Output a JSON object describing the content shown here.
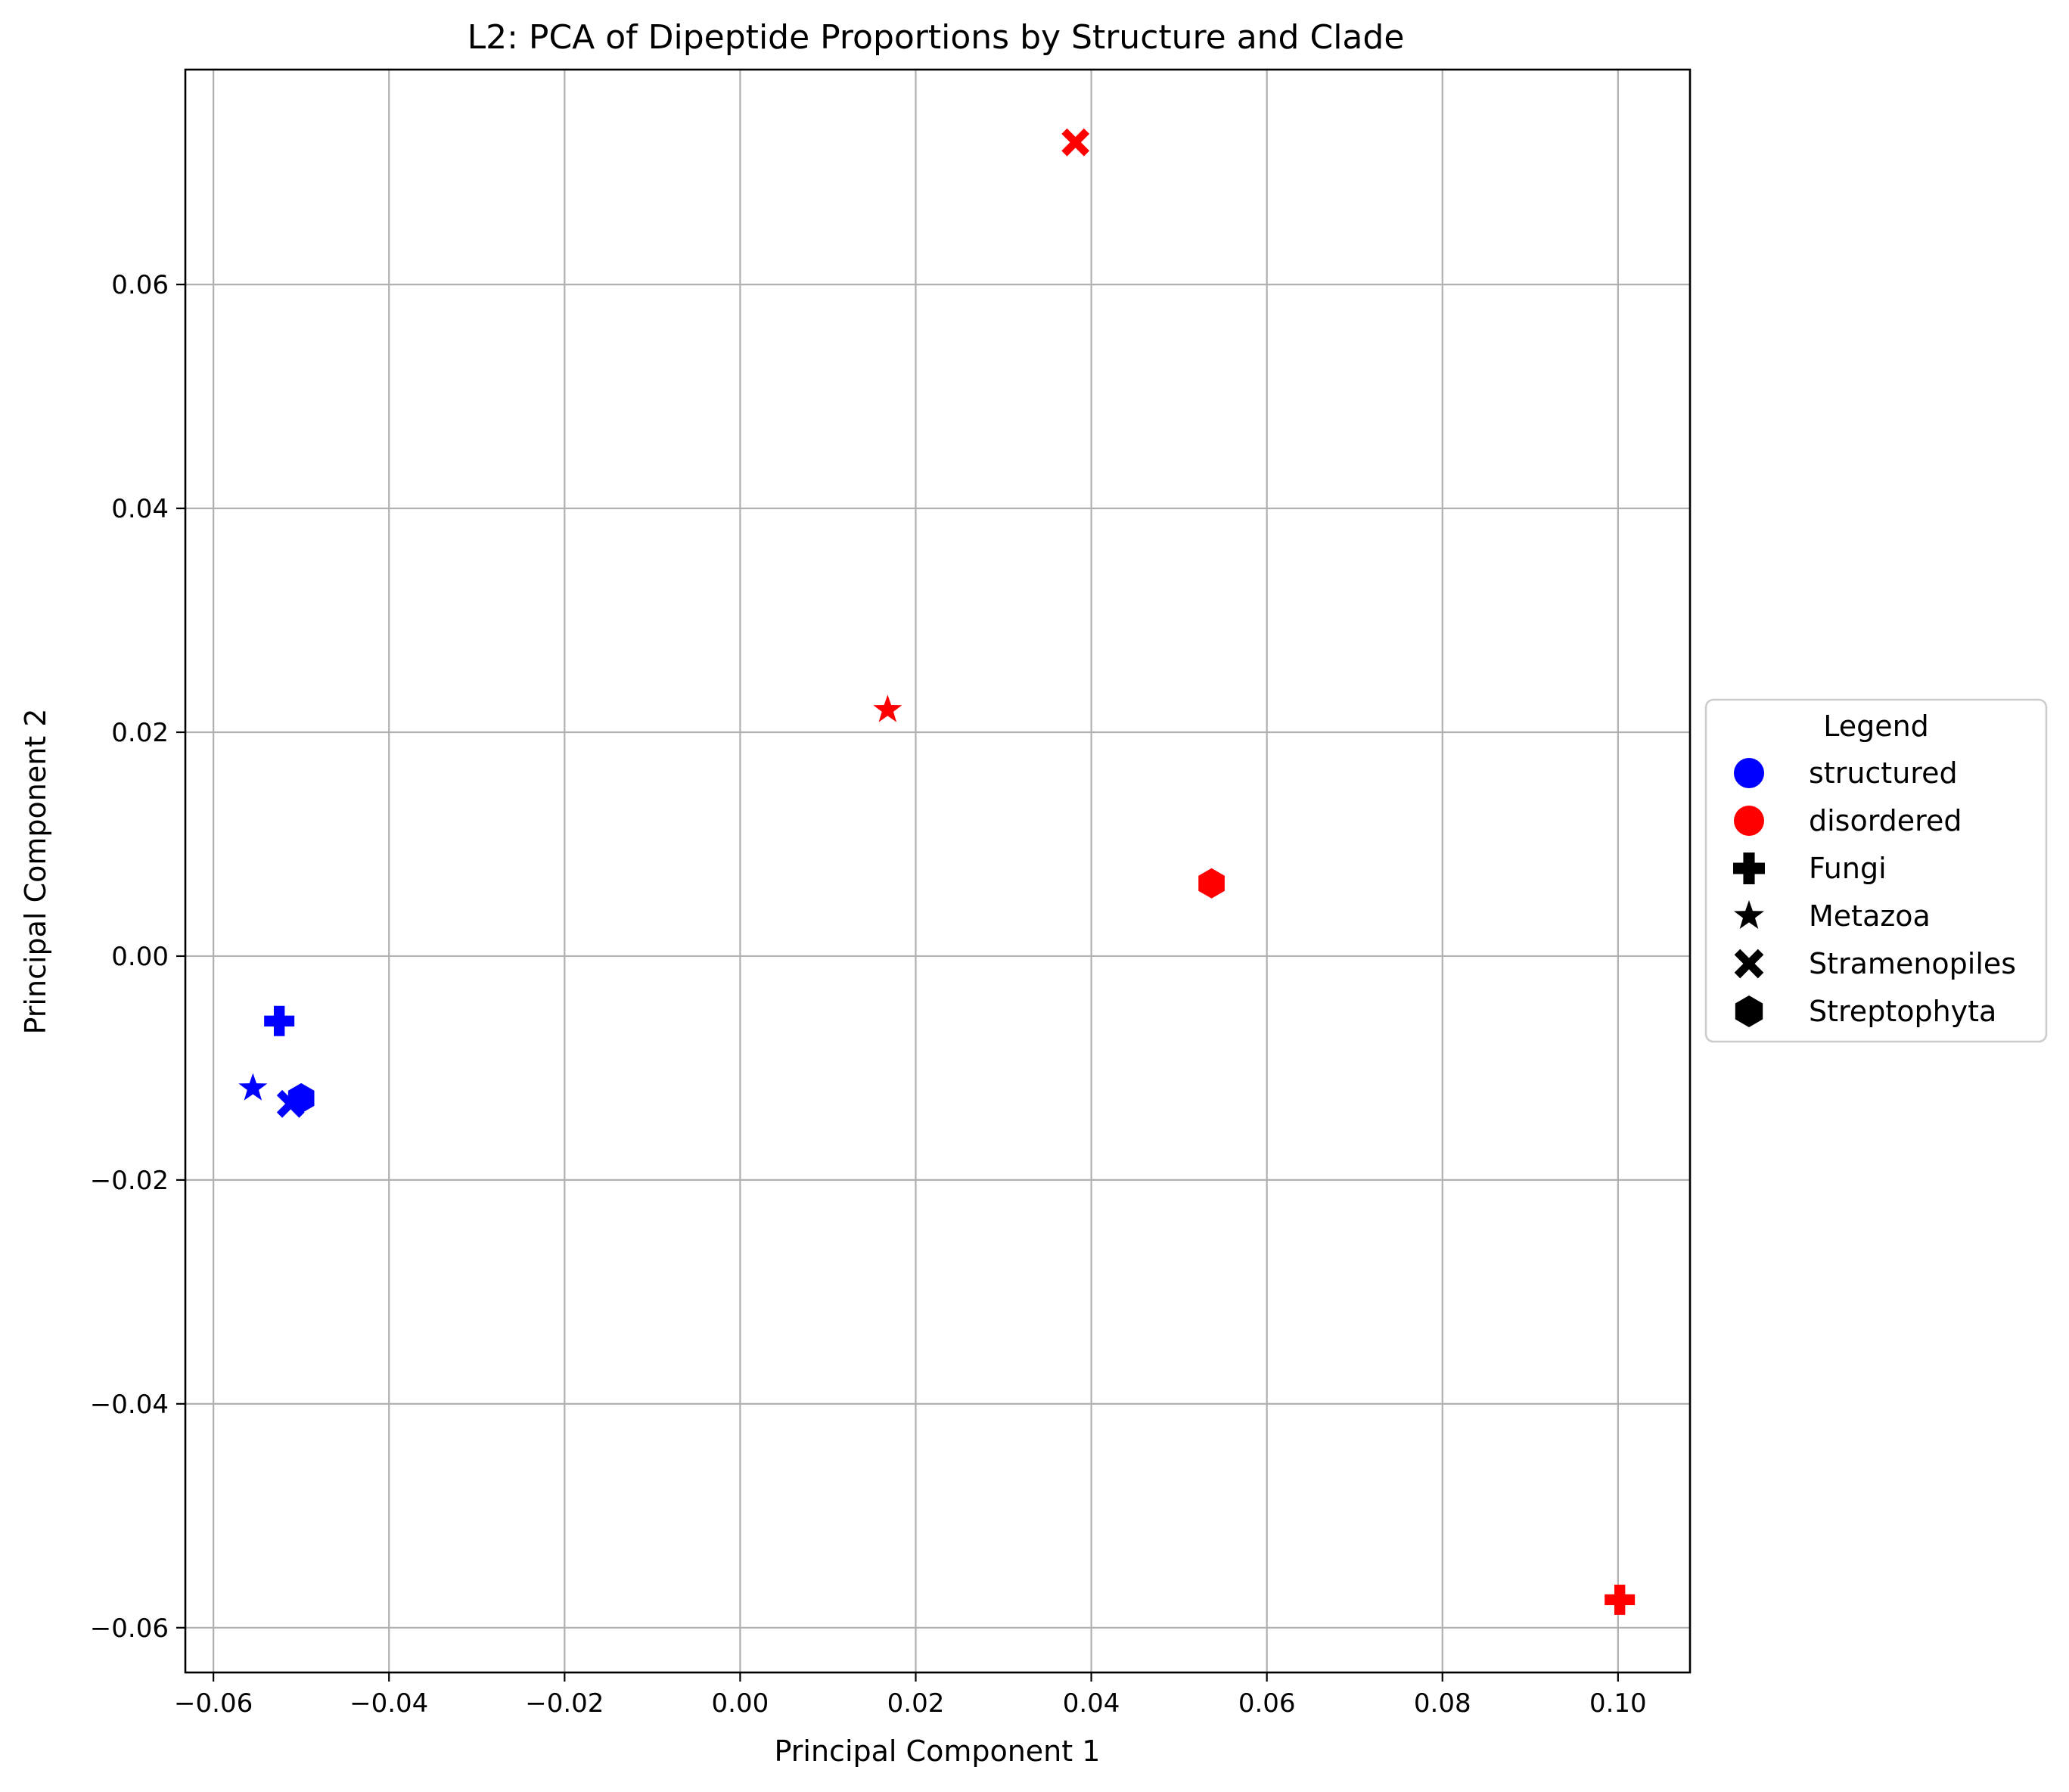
{
  "chart_data": {
    "type": "scatter",
    "title": "L2: PCA of Dipeptide Proportions by Structure and Clade",
    "xlabel": "Principal Component 1",
    "ylabel": "Principal Component 2",
    "xlim": [
      -0.0632,
      0.1082
    ],
    "ylim": [
      -0.064,
      0.0792
    ],
    "xticks": [
      {
        "value": -0.06,
        "label": "−0.06"
      },
      {
        "value": -0.04,
        "label": "−0.04"
      },
      {
        "value": -0.02,
        "label": "−0.02"
      },
      {
        "value": 0.0,
        "label": "0.00"
      },
      {
        "value": 0.02,
        "label": "0.02"
      },
      {
        "value": 0.04,
        "label": "0.04"
      },
      {
        "value": 0.06,
        "label": "0.06"
      },
      {
        "value": 0.08,
        "label": "0.08"
      },
      {
        "value": 0.1,
        "label": "0.10"
      }
    ],
    "yticks": [
      {
        "value": -0.06,
        "label": "−0.06"
      },
      {
        "value": -0.04,
        "label": "−0.04"
      },
      {
        "value": -0.02,
        "label": "−0.02"
      },
      {
        "value": 0.0,
        "label": "0.00"
      },
      {
        "value": 0.02,
        "label": "0.02"
      },
      {
        "value": 0.04,
        "label": "0.04"
      },
      {
        "value": 0.06,
        "label": "0.06"
      }
    ],
    "grid": true,
    "legend": {
      "title": "Legend",
      "placement": "outside-right",
      "entries": [
        {
          "label": "structured",
          "marker": "circle",
          "color": "#0000ff"
        },
        {
          "label": "disordered",
          "marker": "circle",
          "color": "#ff0000"
        },
        {
          "label": "Fungi",
          "marker": "plus",
          "color": "#000000"
        },
        {
          "label": "Metazoa",
          "marker": "star",
          "color": "#000000"
        },
        {
          "label": "Stramenopiles",
          "marker": "x",
          "color": "#000000"
        },
        {
          "label": "Streptophyta",
          "marker": "hexagon",
          "color": "#000000"
        }
      ]
    },
    "points": [
      {
        "structure": "structured",
        "clade": "Fungi",
        "marker": "plus",
        "color": "#0000ff",
        "x": -0.0525,
        "y": -0.0058
      },
      {
        "structure": "structured",
        "clade": "Metazoa",
        "marker": "star",
        "color": "#0000ff",
        "x": -0.0555,
        "y": -0.0118
      },
      {
        "structure": "structured",
        "clade": "Stramenopiles",
        "marker": "x",
        "color": "#0000ff",
        "x": -0.0512,
        "y": -0.0132
      },
      {
        "structure": "structured",
        "clade": "Streptophyta",
        "marker": "hexagon",
        "color": "#0000ff",
        "x": -0.05,
        "y": -0.0127
      },
      {
        "structure": "disordered",
        "clade": "Fungi",
        "marker": "plus",
        "color": "#ff0000",
        "x": 0.1002,
        "y": -0.0575
      },
      {
        "structure": "disordered",
        "clade": "Metazoa",
        "marker": "star",
        "color": "#ff0000",
        "x": 0.0168,
        "y": 0.022
      },
      {
        "structure": "disordered",
        "clade": "Stramenopiles",
        "marker": "x",
        "color": "#ff0000",
        "x": 0.0382,
        "y": 0.0727
      },
      {
        "structure": "disordered",
        "clade": "Streptophyta",
        "marker": "hexagon",
        "color": "#ff0000",
        "x": 0.0537,
        "y": 0.0065
      }
    ]
  }
}
